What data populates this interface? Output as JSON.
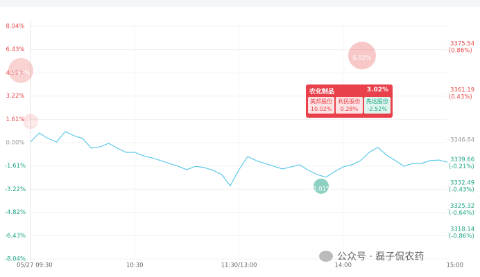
{
  "chart_data": {
    "type": "line",
    "categories": [
      "05/27 09:30",
      null,
      null,
      null,
      null,
      null,
      null,
      null,
      null,
      null,
      null,
      null,
      "10:30",
      null,
      null,
      null,
      null,
      null,
      null,
      null,
      null,
      null,
      null,
      null,
      "11:30/13:00",
      null,
      null,
      null,
      null,
      null,
      null,
      null,
      null,
      null,
      null,
      null,
      "14:00",
      null,
      null,
      null,
      null,
      null,
      null,
      null,
      null,
      null,
      null,
      null,
      "15:00"
    ],
    "values": [
      0.05,
      0.67,
      0.29,
      0.05,
      0.77,
      0.48,
      0.29,
      -0.38,
      -0.29,
      -0.05,
      -0.38,
      -0.67,
      -0.67,
      -0.91,
      -1.05,
      -1.24,
      -1.44,
      -1.63,
      -1.87,
      -1.63,
      -1.72,
      -1.91,
      -2.2,
      -2.97,
      -1.87,
      -0.96,
      -1.24,
      -1.44,
      -1.63,
      -1.82,
      -1.67,
      -1.53,
      -1.91,
      -2.2,
      -2.39,
      -2.01,
      -1.67,
      -1.53,
      -1.24,
      -0.67,
      -0.33,
      -0.86,
      -1.24,
      -1.63,
      -1.44,
      -1.44,
      -1.24,
      -1.2,
      -1.34
    ],
    "color": "#5bc8e8",
    "ylim": [
      -8.04,
      8.04
    ],
    "yticks": [
      {
        "value": 8.04,
        "label": "8.04%"
      },
      {
        "value": 6.43,
        "label": "6.43%"
      },
      {
        "value": 4.82,
        "label": "4.82%"
      },
      {
        "value": 3.22,
        "label": "3.22%"
      },
      {
        "value": 1.61,
        "label": "1.61%"
      },
      {
        "value": 0,
        "label": "0.00%"
      },
      {
        "value": -1.61,
        "label": "-1.61%"
      },
      {
        "value": -3.22,
        "label": "-3.22%"
      },
      {
        "value": -4.82,
        "label": "-4.82%"
      },
      {
        "value": -6.43,
        "label": "-6.43%"
      },
      {
        "value": -8.04,
        "label": "-8.04%"
      }
    ],
    "y2lim": [
      3310.0,
      3381.97
    ],
    "y2ticks": [
      3375.54,
      3361.19,
      3346.84,
      3339.66,
      3332.49,
      3325.32,
      3318.14
    ],
    "y2tick_sublabels": [
      "(0.86%)",
      "(0.43%)",
      null,
      "(-0.21%)",
      "(-0.43%)",
      "(-0.64%)",
      "(-0.86%)"
    ],
    "grid": true,
    "up_color": "#e84a4a",
    "down_color": "#1aa383",
    "flat_color": "#999999",
    "annotations": [
      {
        "value": 4.99,
        "label": "4.99%"
      },
      {
        "value": 6.02,
        "label": "6.02%"
      },
      {
        "value": -3.01,
        "label": "-3.01%"
      },
      {
        "value": 1.47,
        "label": "1.47%"
      }
    ]
  },
  "tooltip": {
    "title": "农化制品",
    "value": "3.02%",
    "items": [
      {
        "name": "美邦股份",
        "value": "10.02%"
      },
      {
        "name": "利民股份",
        "value": "0.28%"
      },
      {
        "name": "先达股份",
        "value": "-2.52%"
      }
    ]
  },
  "watermark": "公众号 · 磊子侃农药"
}
